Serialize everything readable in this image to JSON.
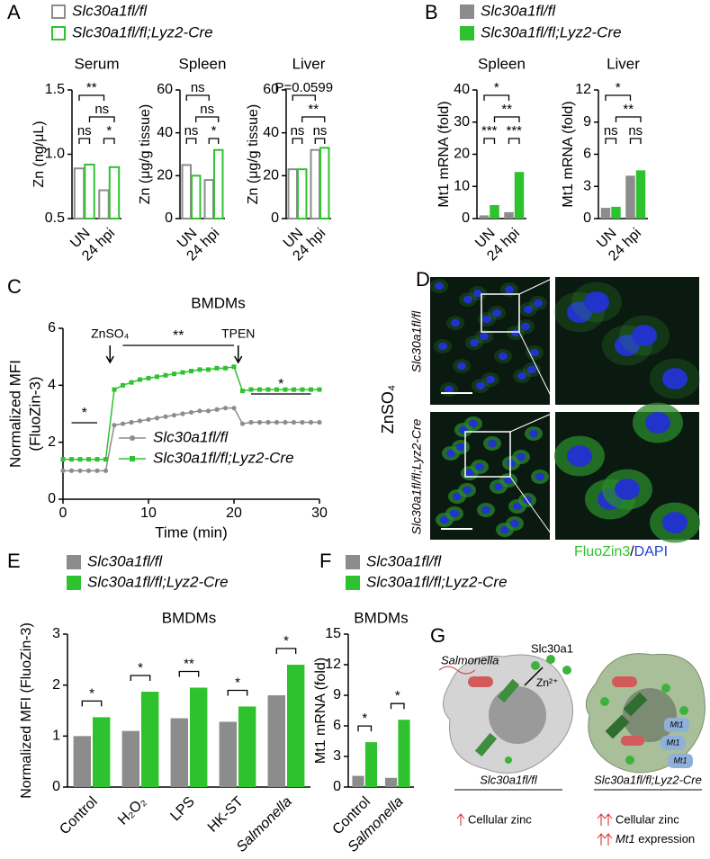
{
  "panel_labels": [
    "A",
    "B",
    "C",
    "D",
    "E",
    "F",
    "G"
  ],
  "chart_data": [
    {
      "type": "bar",
      "title": "Serum",
      "ylabel": "Zn (ng/μL)",
      "categories": [
        "UN",
        "24 hpi"
      ],
      "open_bars": true,
      "ylim": [
        0.5,
        1.5
      ],
      "yticks": [
        0.5,
        {
          "value": 1,
          "label": "1.0"
        },
        1.5
      ],
      "series": [
        {
          "name": "Slc30a1fl/fl",
          "color": "#8c8c8c",
          "values": [
            0.89,
            0.72
          ]
        },
        {
          "name": "Slc30a1fl/fl;Lyz2-Cre",
          "color": "#2ec22e",
          "values": [
            0.92,
            0.9
          ]
        }
      ],
      "annotations": [
        "**",
        "ns",
        "ns",
        "*"
      ]
    },
    {
      "type": "bar",
      "title": "Spleen",
      "ylabel": "Zn (μg/g tissue)",
      "categories": [
        "UN",
        "24 hpi"
      ],
      "open_bars": true,
      "ylim": [
        0,
        60
      ],
      "yticks": [
        0,
        20,
        40,
        60
      ],
      "series": [
        {
          "color": "#8c8c8c",
          "values": [
            25,
            18
          ]
        },
        {
          "color": "#2ec22e",
          "values": [
            20,
            32
          ]
        }
      ],
      "annotations": [
        "ns",
        "ns",
        "ns",
        "*"
      ]
    },
    {
      "type": "bar",
      "title": "Liver",
      "ylabel": "Zn (μg/g tissue)",
      "categories": [
        "UN",
        "24 hpi"
      ],
      "open_bars": true,
      "ylim": [
        0,
        60
      ],
      "yticks": [
        0,
        20,
        40,
        60
      ],
      "series": [
        {
          "color": "#8c8c8c",
          "values": [
            23,
            32
          ]
        },
        {
          "color": "#2ec22e",
          "values": [
            23,
            33
          ]
        }
      ],
      "annotations": [
        "P=0.0599",
        "**",
        "ns",
        "ns"
      ]
    },
    {
      "type": "bar",
      "title": "Spleen",
      "ylabel": "Mt1 mRNA (fold)",
      "categories": [
        "UN",
        "24 hpi"
      ],
      "open_bars": false,
      "ylim": [
        0,
        40
      ],
      "yticks": [
        0,
        10,
        20,
        30,
        40
      ],
      "series": [
        {
          "name": "Slc30a1fl/fl",
          "color": "#8c8c8c",
          "values": [
            1,
            2
          ]
        },
        {
          "name": "Slc30a1fl/fl;Lyz2-Cre",
          "color": "#2ec22e",
          "values": [
            4.2,
            14.5
          ]
        }
      ],
      "annotations": [
        "*",
        "**",
        "***",
        "***"
      ]
    },
    {
      "type": "bar",
      "title": "Liver",
      "ylabel": "Mt1 mRNA (fold)",
      "categories": [
        "UN",
        "24 hpi"
      ],
      "open_bars": false,
      "ylim": [
        0,
        12
      ],
      "yticks": [
        0,
        3,
        6,
        9,
        12
      ],
      "series": [
        {
          "color": "#8c8c8c",
          "values": [
            1,
            4
          ]
        },
        {
          "color": "#2ec22e",
          "values": [
            1.1,
            4.5
          ]
        }
      ],
      "annotations": [
        "*",
        "**",
        "ns",
        "ns"
      ]
    },
    {
      "type": "line",
      "title": "BMDMs",
      "ylabel": [
        "Normalized MFI",
        "(FluoZin-3)"
      ],
      "xlabel": "Time (min)",
      "x": [
        0,
        1,
        2,
        3,
        4,
        5,
        6,
        7,
        8,
        9,
        10,
        11,
        12,
        13,
        14,
        15,
        16,
        17,
        18,
        19,
        20,
        21,
        22,
        23,
        24,
        25,
        26,
        27,
        28,
        29,
        30
      ],
      "xlim": [
        0,
        30
      ],
      "xticks": [
        0,
        10,
        20,
        30
      ],
      "ylim": [
        0,
        6
      ],
      "yticks": [
        0,
        2,
        4,
        6
      ],
      "series": [
        {
          "name": "Slc30a1fl/fl",
          "color": "#8c8c8c",
          "values": [
            1,
            1,
            1,
            1,
            1,
            1,
            2.6,
            2.65,
            2.7,
            2.75,
            2.8,
            2.85,
            2.9,
            2.95,
            3,
            3.05,
            3.1,
            3.1,
            3.15,
            3.2,
            3.2,
            2.65,
            2.7,
            2.7,
            2.7,
            2.7,
            2.7,
            2.7,
            2.7,
            2.7,
            2.7
          ]
        },
        {
          "name": "Slc30a1fl/fl;Lyz2-Cre",
          "color": "#2ec22e",
          "values": [
            1.4,
            1.4,
            1.4,
            1.4,
            1.4,
            1.4,
            3.85,
            4,
            4.1,
            4.2,
            4.25,
            4.3,
            4.35,
            4.4,
            4.45,
            4.5,
            4.55,
            4.55,
            4.6,
            4.6,
            4.65,
            3.8,
            3.85,
            3.85,
            3.85,
            3.85,
            3.85,
            3.85,
            3.85,
            3.85,
            3.85
          ]
        }
      ],
      "annotations": [
        "ZnSO₄",
        "TPEN",
        "*",
        "**",
        "*"
      ]
    },
    {
      "type": "bar",
      "title": "BMDMs",
      "ylabel": "Normalized MFI (FluoZin-3)",
      "categories": [
        "Control",
        "H₂O₂",
        "LPS",
        "HK-ST",
        "Salmonella"
      ],
      "open_bars": false,
      "ylim": [
        0,
        3
      ],
      "yticks": [
        0,
        1,
        2,
        3
      ],
      "series": [
        {
          "name": "Slc30a1fl/fl",
          "color": "#8c8c8c",
          "values": [
            1,
            1.1,
            1.35,
            1.28,
            1.8
          ]
        },
        {
          "name": "Slc30a1fl/fl;Lyz2-Cre",
          "color": "#2ec22e",
          "values": [
            1.37,
            1.87,
            1.95,
            1.58,
            2.4
          ]
        }
      ],
      "annotations": [
        "*",
        "*",
        "**",
        "*",
        "*"
      ]
    },
    {
      "type": "bar",
      "title": "BMDMs",
      "ylabel": "Mt1 mRNA (fold)",
      "categories": [
        "Control",
        "Salmonella"
      ],
      "open_bars": false,
      "ylim": [
        0,
        15
      ],
      "yticks": [
        0,
        3,
        6,
        9,
        12,
        15
      ],
      "series": [
        {
          "name": "Slc30a1fl/fl",
          "color": "#8c8c8c",
          "values": [
            1.1,
            0.9
          ]
        },
        {
          "name": "Slc30a1fl/fl;Lyz2-Cre",
          "color": "#2ec22e",
          "values": [
            4.4,
            6.6
          ]
        }
      ],
      "annotations": [
        "*",
        "*"
      ]
    }
  ],
  "images": {
    "treatment": "ZnSO₄",
    "rows": [
      "Slc30a1fl/fl",
      "Slc30a1fl/fl;Lyz2-Cre"
    ],
    "stain_green": "FluoZin3",
    "separator": "/",
    "stain_blue": "DAPI"
  },
  "schematic": {
    "bacterium": "Salmonella",
    "transporter": "Slc30a1",
    "ion": "Zn²⁺",
    "mt": [
      "Mt1",
      "Mt1",
      "Mt1"
    ],
    "left_label": "Slc30a1fl/fl",
    "left_effect": "Cellular zinc",
    "right_label": "Slc30a1fl/fl;Lyz2-Cre",
    "right_effect": "Cellular zinc",
    "right_effect2_gene": "Mt1",
    "right_effect2_rest": " expression"
  }
}
